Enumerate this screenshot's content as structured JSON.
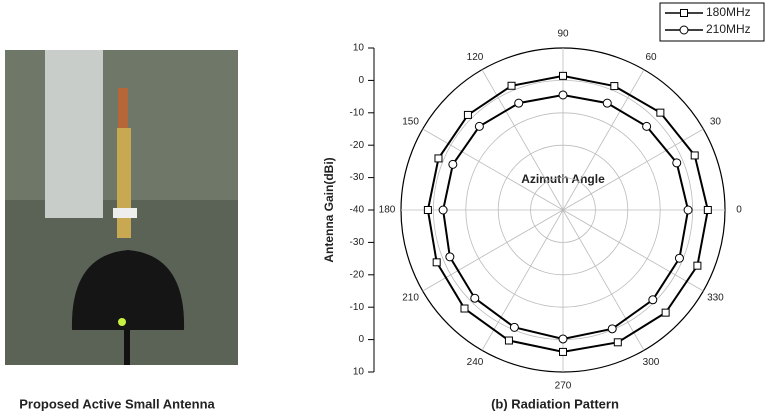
{
  "chart_data": {
    "type": "polar",
    "title": "(b) Radiation Pattern",
    "photo_caption": "Proposed Active Small Antenna",
    "r_label": "Antenna Gain(dBi)",
    "annotation": "Azimuth Angle",
    "rlim": [
      -40,
      10
    ],
    "rticks": [
      -40,
      -30,
      -20,
      -10,
      0,
      10
    ],
    "angle_ticks": [
      0,
      30,
      60,
      90,
      120,
      150,
      180,
      210,
      240,
      270,
      300,
      330
    ],
    "grid": true,
    "legend": "upper right",
    "x": [
      0,
      22.5,
      45,
      67.5,
      90,
      112.5,
      135,
      157.5,
      180,
      202.5,
      225,
      247.5,
      270,
      292.5,
      315,
      337.5
    ],
    "series": [
      {
        "name": "180MHz",
        "color": "#000000",
        "marker": "square",
        "values": [
          4.7,
          4,
          2.5,
          1.4,
          1.4,
          1.5,
          1.5,
          1.6,
          1.7,
          2.2,
          3,
          3.6,
          3.8,
          4.2,
          4.8,
          4.9
        ]
      },
      {
        "name": "210MHz",
        "color": "#000000",
        "marker": "circle",
        "values": [
          -1.4,
          -2,
          -3.5,
          -4.3,
          -4.5,
          -4.3,
          -3.5,
          -3.2,
          -3,
          -2.2,
          -1.5,
          -0.8,
          -0.2,
          -0.3,
          -0.8,
          -1.1
        ]
      }
    ]
  }
}
